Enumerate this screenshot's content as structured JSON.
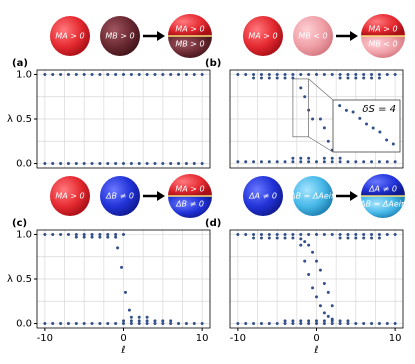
{
  "chart_data": [
    {
      "type": "scatter",
      "panel_label": "(a)",
      "ylabel": "λ",
      "icon_labels": [
        "MA > 0",
        "MB > 0",
        "MA > 0",
        "MB > 0"
      ],
      "xlim": [
        -11,
        11
      ],
      "ylim": [
        -0.05,
        1.05
      ],
      "yticks": [
        {
          "value": 0,
          "label": "0.0"
        },
        0.5,
        {
          "value": 1,
          "label": "1.0"
        }
      ],
      "xgrid": [
        -10,
        -7.5,
        -5,
        -2.5,
        0,
        2.5,
        5,
        7.5,
        10
      ],
      "ygrid": [
        0,
        0.25,
        0.5,
        0.75,
        1
      ],
      "color": "#34508a",
      "x": [
        -10,
        -9,
        -8,
        -7,
        -6,
        -5,
        -4,
        -3,
        -2,
        -1,
        0,
        1,
        2,
        3,
        4,
        5,
        6,
        7,
        8,
        9,
        10,
        -10,
        -9,
        -8,
        -7,
        -6,
        -5,
        -4,
        -3,
        -2,
        -1,
        0,
        1,
        2,
        3,
        4,
        5,
        6,
        7,
        8,
        9,
        10
      ],
      "values": [
        1,
        1,
        1,
        1,
        1,
        1,
        1,
        1,
        1,
        1,
        1,
        1,
        1,
        1,
        1,
        1,
        1,
        1,
        1,
        1,
        1,
        0,
        0,
        0,
        0,
        0,
        0,
        0,
        0,
        0,
        0,
        0,
        0,
        0,
        0,
        0,
        0,
        0,
        0,
        0,
        0,
        0
      ]
    },
    {
      "type": "scatter",
      "panel_label": "(b)",
      "icon_labels": [
        "MA > 0",
        "MB < 0",
        "MA > 0",
        "MB < 0"
      ],
      "xlim": [
        -11,
        11
      ],
      "ylim": [
        -0.05,
        1.05
      ],
      "xgrid": [
        -10,
        -7.5,
        -5,
        -2.5,
        0,
        2.5,
        5,
        7.5,
        10
      ],
      "ygrid": [
        0,
        0.25,
        0.5,
        0.75,
        1
      ],
      "color": "#34508a",
      "x": [
        -10,
        -9,
        -8,
        -7,
        -6,
        -5,
        -4,
        -3,
        -2,
        -1,
        0,
        1,
        2,
        3,
        4,
        5,
        6,
        7,
        8,
        9,
        10,
        -10,
        -9,
        -8,
        -7,
        -6,
        -5,
        -4,
        -3,
        -2,
        -1,
        0,
        1,
        2,
        3,
        4,
        5,
        6,
        7,
        8,
        9,
        10,
        -8,
        -7,
        -6,
        -5,
        -4,
        -3,
        3,
        4,
        5,
        6,
        7,
        8,
        -3,
        -2,
        -1,
        1,
        2,
        3,
        -2,
        -1.5,
        -1,
        -0.5,
        0.5,
        1,
        1.5,
        2
      ],
      "values": [
        1,
        1,
        1,
        1,
        1,
        1,
        1,
        1,
        1,
        1,
        1,
        1,
        1,
        1,
        1,
        1,
        1,
        1,
        1,
        1,
        1,
        0.02,
        0.02,
        0.02,
        0.02,
        0.02,
        0.02,
        0.02,
        0.02,
        0.02,
        0.02,
        0.02,
        0.02,
        0.02,
        0.02,
        0.02,
        0.02,
        0.02,
        0.02,
        0.02,
        0.02,
        0.02,
        0.96,
        0.96,
        0.96,
        0.96,
        0.96,
        0.96,
        0.96,
        0.96,
        0.96,
        0.96,
        0.96,
        0.96,
        0.06,
        0.06,
        0.06,
        0.06,
        0.06,
        0.06,
        0.85,
        0.75,
        0.6,
        0.5,
        0.5,
        0.4,
        0.25,
        0.15
      ],
      "inset": {
        "label": "δS = 4",
        "xlim": [
          -3,
          -1
        ],
        "ylim": [
          0.3,
          0.95
        ],
        "x": [
          -2.8,
          -2.6,
          -2.4,
          -2.2,
          -2.0,
          -1.8,
          -1.6,
          -1.4,
          -1.2
        ],
        "values": [
          0.88,
          0.82,
          0.8,
          0.72,
          0.65,
          0.6,
          0.55,
          0.45,
          0.4
        ]
      }
    },
    {
      "type": "scatter",
      "panel_label": "(c)",
      "ylabel": "λ",
      "xlabel": "ℓ",
      "icon_labels": [
        "MA > 0",
        "ΔB ≠ 0",
        "MA > 0",
        "ΔB ≠ 0"
      ],
      "xlim": [
        -11,
        11
      ],
      "ylim": [
        -0.05,
        1.05
      ],
      "yticks": [
        {
          "value": 0,
          "label": "0.0"
        },
        0.5,
        {
          "value": 1,
          "label": "1.0"
        }
      ],
      "xticks": [
        -10,
        0,
        10
      ],
      "xgrid": [
        -10,
        -7.5,
        -5,
        -2.5,
        0,
        2.5,
        5,
        7.5,
        10
      ],
      "ygrid": [
        0,
        0.25,
        0.5,
        0.75,
        1
      ],
      "color": "#34508a",
      "x": [
        -10,
        -9,
        -8,
        -7,
        -6,
        -5,
        -4,
        -3,
        -2,
        -1,
        0,
        -6,
        -5,
        -4,
        -3,
        -2,
        -1,
        -10,
        -9,
        -8,
        -7,
        -6,
        -5,
        -4,
        -3,
        -2,
        -1,
        0,
        1,
        2,
        3,
        4,
        5,
        6,
        7,
        8,
        9,
        10,
        0,
        1,
        2,
        3,
        4,
        5,
        6,
        1,
        2,
        3,
        -0.75,
        -0.25,
        0.25,
        0.75
      ],
      "values": [
        1,
        1,
        1,
        1,
        1,
        1,
        1,
        1,
        1,
        1,
        1,
        0.97,
        0.97,
        0.97,
        0.97,
        0.97,
        0.97,
        0,
        0,
        0,
        0,
        0,
        0,
        0,
        0,
        0,
        0,
        0,
        0,
        0,
        0,
        0,
        0,
        0,
        0,
        0,
        0,
        0,
        0.03,
        0.03,
        0.03,
        0.03,
        0.03,
        0.03,
        0.03,
        0.07,
        0.07,
        0.07,
        0.85,
        0.63,
        0.35,
        0.15
      ]
    },
    {
      "type": "scatter",
      "panel_label": "(d)",
      "xlabel": "ℓ",
      "icon_labels": [
        "ΔA ≠ 0",
        "ΔB = ΔAeiπ",
        "ΔA ≠ 0",
        "ΔB = ΔAeiπ"
      ],
      "xlim": [
        -11,
        11
      ],
      "ylim": [
        -0.05,
        1.05
      ],
      "xticks": [
        -10,
        0,
        10
      ],
      "xgrid": [
        -10,
        -7.5,
        -5,
        -2.5,
        0,
        2.5,
        5,
        7.5,
        10
      ],
      "ygrid": [
        0,
        0.25,
        0.5,
        0.75,
        1
      ],
      "color": "#34508a",
      "x": [
        -10,
        -9,
        -8,
        -7,
        -6,
        -5,
        -4,
        -3,
        -2,
        -1,
        0,
        1,
        2,
        3,
        4,
        5,
        6,
        7,
        8,
        9,
        10,
        -10,
        -9,
        -8,
        -7,
        -6,
        -5,
        -4,
        -3,
        -2,
        -1,
        0,
        1,
        2,
        3,
        4,
        5,
        6,
        7,
        8,
        9,
        10,
        -8,
        -7,
        -6,
        -5,
        -4,
        -3,
        3,
        4,
        5,
        6,
        7,
        8,
        -4,
        -3,
        -2,
        -1,
        0,
        1,
        2,
        3,
        4,
        -2,
        -1.5,
        -1,
        -0.5,
        0,
        0.5,
        1,
        1.5,
        2,
        -2,
        -1.5,
        -1,
        -0.5,
        0,
        0.5,
        1,
        1.5,
        2
      ],
      "values": [
        1,
        1,
        1,
        1,
        1,
        1,
        1,
        1,
        1,
        1,
        1,
        1,
        1,
        1,
        1,
        1,
        1,
        1,
        1,
        1,
        1,
        0,
        0,
        0,
        0,
        0,
        0,
        0,
        0,
        0,
        0,
        0,
        0,
        0,
        0,
        0,
        0,
        0,
        0,
        0,
        0,
        0,
        0.96,
        0.96,
        0.96,
        0.96,
        0.96,
        0.96,
        0.96,
        0.96,
        0.96,
        0.96,
        0.96,
        0.96,
        0.03,
        0.03,
        0.03,
        0.03,
        0.03,
        0.03,
        0.03,
        0.03,
        0.03,
        0.88,
        0.7,
        0.55,
        0.4,
        0.3,
        0.2,
        0.12,
        0.08,
        0.05,
        0.95,
        0.92,
        0.88,
        0.8,
        0.7,
        0.6,
        0.45,
        0.35,
        0.2
      ]
    }
  ]
}
